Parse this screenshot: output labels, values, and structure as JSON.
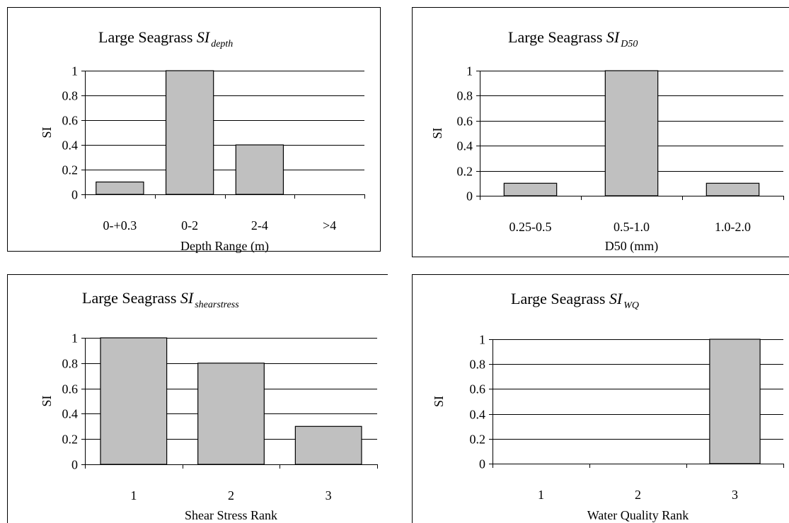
{
  "chart_data": [
    {
      "type": "bar",
      "title": {
        "main": "Large Seagrass",
        "sym": "SI",
        "sub": "depth"
      },
      "categories": [
        "0-+0.3",
        "0-2",
        "2-4",
        ">4"
      ],
      "values": [
        0.1,
        1.0,
        0.4,
        0
      ],
      "xlabel": "Depth Range (m)",
      "ylabel": "SI",
      "ylim": [
        0,
        1
      ],
      "yticks": [
        "0",
        "0.2",
        "0.4",
        "0.6",
        "0.8",
        "1"
      ],
      "grid": true,
      "bar_color": "#c0c0c0"
    },
    {
      "type": "bar",
      "title": {
        "main": "Large Seagrass",
        "sym": "SI",
        "sub": "D50"
      },
      "categories": [
        "0.25-0.5",
        "0.5-1.0",
        "1.0-2.0"
      ],
      "values": [
        0.1,
        1.0,
        0.1
      ],
      "xlabel": "D50 (mm)",
      "ylabel": "SI",
      "ylim": [
        0,
        1
      ],
      "yticks": [
        "0",
        "0.2",
        "0.4",
        "0.6",
        "0.8",
        "1"
      ],
      "grid": true,
      "bar_color": "#c0c0c0"
    },
    {
      "type": "bar",
      "title": {
        "main": "Large Seagrass",
        "sym": "SI",
        "sub": "shearstress"
      },
      "categories": [
        "1",
        "2",
        "3"
      ],
      "values": [
        1.0,
        0.8,
        0.3
      ],
      "xlabel": "Shear Stress Rank",
      "ylabel": "SI",
      "ylim": [
        0,
        1
      ],
      "yticks": [
        "0",
        "0.2",
        "0.4",
        "0.6",
        "0.8",
        "1"
      ],
      "grid": true,
      "bar_color": "#c0c0c0"
    },
    {
      "type": "bar",
      "title": {
        "main": "Large Seagrass",
        "sym": "SI",
        "sub": "WQ"
      },
      "categories": [
        "1",
        "2",
        "3"
      ],
      "values": [
        0,
        0,
        1.0
      ],
      "xlabel": "Water Quality Rank",
      "ylabel": "SI",
      "ylim": [
        0,
        1
      ],
      "yticks": [
        "0",
        "0.2",
        "0.4",
        "0.6",
        "0.8",
        "1"
      ],
      "grid": true,
      "bar_color": "#c0c0c0"
    }
  ]
}
